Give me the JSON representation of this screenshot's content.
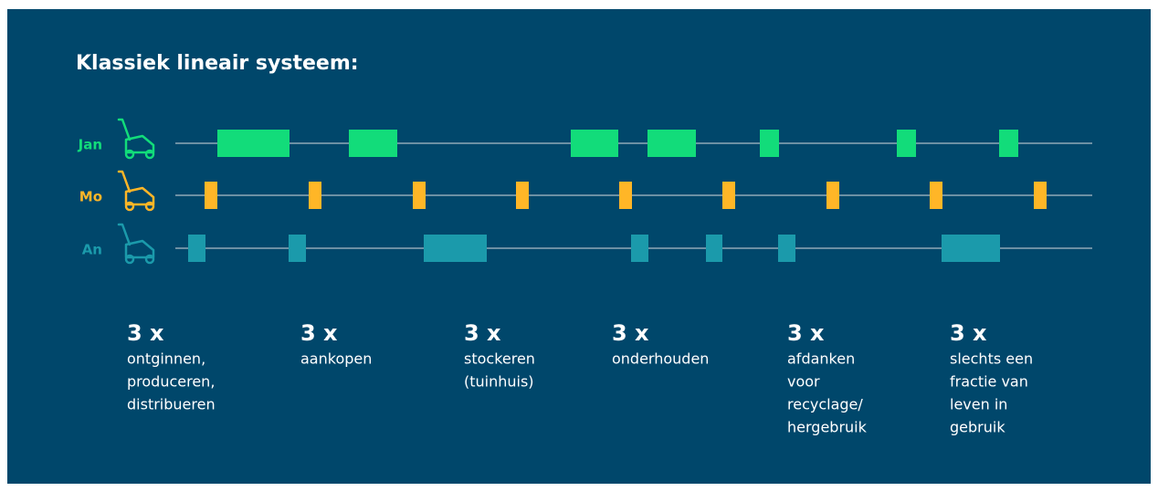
{
  "title": "Klassiek lineair systeem:",
  "rows": [
    {
      "name": "Jan"
    },
    {
      "name": "Mo"
    },
    {
      "name": "An"
    }
  ],
  "stats": [
    {
      "count": "3 x",
      "lines": [
        "ontginnen,",
        "produceren,",
        "distribueren"
      ]
    },
    {
      "count": "3 x",
      "lines": [
        "aankopen"
      ]
    },
    {
      "count": "3 x",
      "lines": [
        "stockeren",
        "(tuinhuis)"
      ]
    },
    {
      "count": "3 x",
      "lines": [
        "onderhouden"
      ]
    },
    {
      "count": "3 x",
      "lines": [
        "afdanken",
        "voor",
        "recyclage/",
        "hergebruik"
      ]
    },
    {
      "count": "3 x",
      "lines": [
        "slechts een",
        "fractie van",
        "leven in",
        "gebruik"
      ]
    }
  ]
}
